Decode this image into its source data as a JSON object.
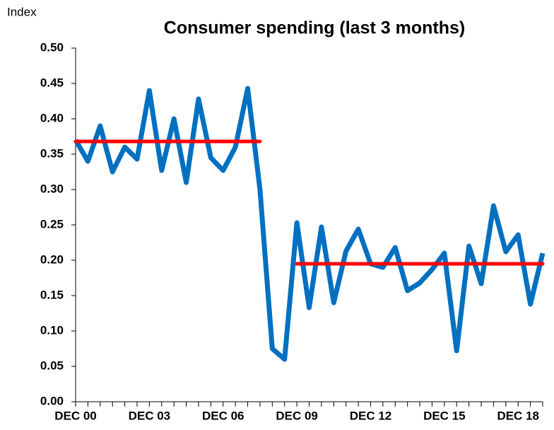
{
  "chart_data": {
    "type": "line",
    "title": "Consumer spending (last 3 months)",
    "y_label": "Index",
    "categories": [
      "DEC 00",
      null,
      null,
      null,
      null,
      null,
      "DEC 03",
      null,
      null,
      null,
      null,
      null,
      "DEC 06",
      null,
      null,
      null,
      null,
      null,
      "DEC 09",
      null,
      null,
      null,
      null,
      null,
      "DEC 12",
      null,
      null,
      null,
      null,
      null,
      "DEC 15",
      null,
      null,
      null,
      null,
      null,
      "DEC 18",
      null,
      null
    ],
    "series": [
      {
        "name": "Consumer spending",
        "color": "#0070c0",
        "values": [
          0.37,
          0.34,
          0.39,
          0.325,
          0.36,
          0.343,
          0.44,
          0.327,
          0.4,
          0.31,
          0.428,
          0.345,
          0.327,
          0.36,
          0.443,
          0.3,
          0.075,
          0.06,
          0.253,
          0.133,
          0.247,
          0.14,
          0.213,
          0.244,
          0.195,
          0.19,
          0.218,
          0.157,
          0.168,
          0.187,
          0.21,
          0.072,
          0.22,
          0.167,
          0.277,
          0.212,
          0.236,
          0.138,
          0.21
        ]
      }
    ],
    "mean_lines": [
      {
        "value": 0.368,
        "x_from": 0,
        "x_to": 15,
        "color": "#ff0000"
      },
      {
        "value": 0.195,
        "x_from": 18,
        "x_to": 38,
        "color": "#ff0000"
      }
    ],
    "ylim": [
      0,
      0.5
    ],
    "yticks": [
      {
        "value": 0,
        "label": "0.00"
      },
      {
        "value": 0.05,
        "label": "0.05"
      },
      {
        "value": 0.1,
        "label": "0.10"
      },
      {
        "value": 0.15,
        "label": "0.15"
      },
      {
        "value": 0.2,
        "label": "0.20"
      },
      {
        "value": 0.25,
        "label": "0.25"
      },
      {
        "value": 0.3,
        "label": "0.30"
      },
      {
        "value": 0.35,
        "label": "0.35"
      },
      {
        "value": 0.4,
        "label": "0.40"
      },
      {
        "value": 0.45,
        "label": "0.45"
      },
      {
        "value": 0.5,
        "label": "0.50"
      }
    ],
    "grid": false
  }
}
